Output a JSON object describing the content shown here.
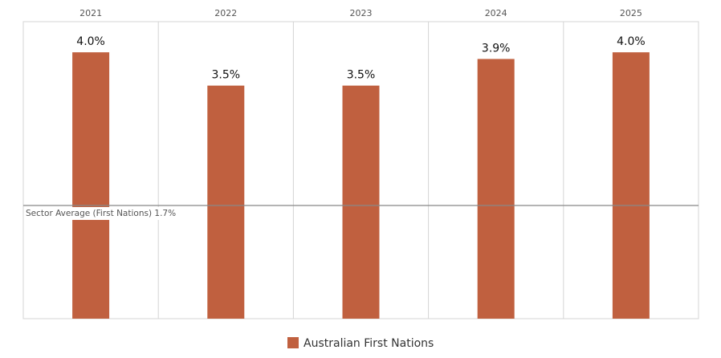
{
  "chart_data": {
    "type": "bar",
    "categories": [
      "2021",
      "2022",
      "2023",
      "2024",
      "2025"
    ],
    "series": [
      {
        "name": "Australian First Nations",
        "color": "#c0603f",
        "values": [
          4.0,
          3.5,
          3.5,
          3.9,
          4.0
        ],
        "value_labels": [
          "4.0%",
          "3.5%",
          "3.5%",
          "3.9%",
          "4.0%"
        ]
      }
    ],
    "ylim": [
      0,
      4.46
    ],
    "reference_line": {
      "value": 1.7,
      "label": "Sector Average (First Nations) 1.7%"
    }
  }
}
